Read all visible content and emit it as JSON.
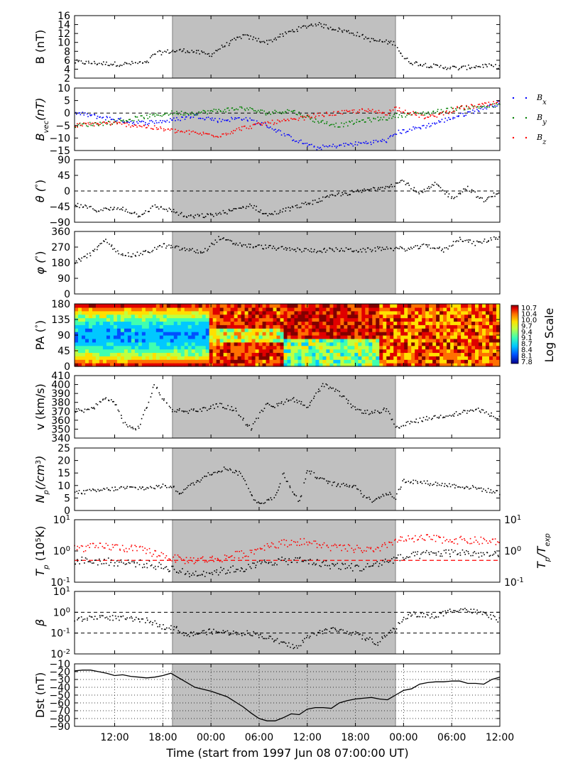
{
  "chart_data": {
    "type": "multi-panel time series",
    "xlabel": "Time (start from 1997 Jun 08 07:00:00 UT)",
    "x_ticks": [
      "12:00",
      "18:00",
      "00:00",
      "06:00",
      "12:00",
      "18:00",
      "00:00",
      "06:00",
      "12:00"
    ],
    "x_range_hours": [
      0,
      53
    ],
    "shaded_interval_hours": [
      12.2,
      40
    ],
    "colors": {
      "shade": "#c0c0c0",
      "bx": "#0000ff",
      "by": "#008000",
      "bz": "#ff0000",
      "data": "#000000",
      "ratio": "#ff0000"
    },
    "panels": [
      {
        "id": "B",
        "ylabel": "B (nT)",
        "yticks": [
          "16",
          "14",
          "12",
          "10",
          "8",
          "6",
          "4",
          "2"
        ],
        "ylim": [
          2,
          16
        ],
        "series": [
          {
            "x": [
              0,
              3,
              6,
              8,
              9,
              10,
              12,
              14,
              17,
              18,
              20,
              21,
              24,
              27,
              30,
              33,
              35,
              37,
              40,
              41,
              42,
              45,
              48,
              51,
              53
            ],
            "values": [
              5.6,
              5.3,
              5.1,
              5.4,
              5.3,
              7.5,
              8.0,
              8.2,
              7.2,
              8.6,
              10.5,
              11.5,
              10.0,
              12.5,
              14.2,
              12.8,
              12.0,
              10.5,
              9.8,
              6.5,
              5.5,
              4.6,
              4.2,
              4.8,
              4.5
            ]
          }
        ]
      },
      {
        "id": "Bvec",
        "ylabel": "Bvec(nT)",
        "yticks": [
          "10",
          "5",
          "0",
          "−5",
          "−10",
          "−15"
        ],
        "ylim": [
          -15,
          10
        ],
        "legend": [
          "Bx",
          "By",
          "Bz"
        ],
        "series": [
          {
            "name": "Bx",
            "x": [
              0,
              4,
              8,
              12,
              15,
              18,
              21,
              24,
              27,
              30,
              33,
              36,
              39,
              40,
              44,
              48,
              53
            ],
            "values": [
              0,
              -2,
              -4,
              -3,
              -1,
              -3,
              -2,
              -5,
              -10,
              -14,
              -13,
              -12,
              -11,
              -8,
              -5,
              -1,
              4
            ]
          },
          {
            "name": "By",
            "x": [
              0,
              4,
              8,
              12,
              15,
              18,
              21,
              24,
              27,
              30,
              33,
              36,
              39,
              40,
              44,
              48,
              53
            ],
            "values": [
              -5,
              -4,
              -2,
              0,
              0,
              1,
              2,
              0,
              1,
              -3,
              -5,
              -3,
              -2,
              -1,
              0,
              2,
              3
            ]
          },
          {
            "name": "Bz",
            "x": [
              0,
              4,
              8,
              12,
              15,
              18,
              21,
              24,
              27,
              30,
              33,
              36,
              39,
              40,
              44,
              48,
              53
            ],
            "values": [
              -5,
              -4,
              -5,
              -7,
              -8,
              -9,
              -6,
              -4,
              -3,
              -1,
              0,
              1,
              0,
              2,
              -2,
              2,
              4
            ]
          }
        ]
      },
      {
        "id": "theta",
        "ylabel": "θ (°)",
        "yticks": [
          "90",
          "45",
          "0",
          "−45",
          "−90"
        ],
        "ylim": [
          -90,
          90
        ],
        "series": [
          {
            "x": [
              0,
              3,
              6,
              8,
              10,
              12,
              14,
              17,
              20,
              22,
              24,
              27,
              30,
              33,
              36,
              38,
              40,
              41,
              43,
              45,
              47,
              49,
              51,
              53
            ],
            "values": [
              -40,
              -55,
              -50,
              -70,
              -45,
              -55,
              -75,
              -70,
              -55,
              -40,
              -70,
              -50,
              -30,
              -10,
              0,
              10,
              20,
              30,
              -10,
              20,
              -20,
              10,
              -30,
              0
            ]
          }
        ]
      },
      {
        "id": "phi",
        "ylabel": "φ (°)",
        "yticks": [
          "360",
          "270",
          "180",
          "90",
          "0"
        ],
        "ylim": [
          0,
          360
        ],
        "series": [
          {
            "x": [
              0,
              2,
              4,
              5,
              7,
              9,
              11,
              12,
              14,
              16,
              18,
              20,
              22,
              24,
              27,
              30,
              33,
              36,
              39,
              40,
              42,
              44,
              46,
              48,
              50,
              53
            ],
            "values": [
              180,
              230,
              310,
              250,
              220,
              240,
              280,
              270,
              255,
              240,
              320,
              290,
              275,
              270,
              255,
              250,
              255,
              250,
              265,
              260,
              260,
              280,
              250,
              320,
              290,
              330
            ]
          }
        ]
      },
      {
        "id": "PA",
        "ylabel": "PA (°)",
        "yticks": [
          "180",
          "135",
          "90",
          "45",
          "0"
        ],
        "ylim": [
          0,
          180
        ],
        "colorbar": {
          "label": "Log Scale",
          "ticks": [
            "10.7",
            "10.4",
            "10.0",
            "9.7",
            "9.4",
            "9.1",
            "8.7",
            "8.4",
            "8.1",
            "7.8"
          ]
        }
      },
      {
        "id": "v",
        "ylabel": "v (km/s)",
        "yticks": [
          "410",
          "400",
          "390",
          "380",
          "370",
          "360",
          "350",
          "340"
        ],
        "ylim": [
          340,
          410
        ],
        "series": [
          {
            "x": [
              0,
              2,
              4,
              5,
              6,
              7,
              8,
              9,
              10,
              11,
              12,
              14,
              16,
              18,
              20,
              22,
              24,
              25,
              27,
              29,
              31,
              33,
              35,
              37,
              39,
              40,
              42,
              44,
              46,
              48,
              50,
              53
            ],
            "values": [
              370,
              372,
              385,
              380,
              360,
              350,
              352,
              375,
              400,
              385,
              372,
              370,
              372,
              377,
              372,
              350,
              380,
              375,
              385,
              375,
              400,
              390,
              372,
              368,
              372,
              350,
              358,
              362,
              365,
              368,
              372,
              363
            ]
          }
        ]
      },
      {
        "id": "Np",
        "ylabel": "Np(/cm3)",
        "yticks": [
          "25",
          "20",
          "15",
          "10",
          "5",
          "0"
        ],
        "ylim": [
          0,
          25
        ],
        "series": [
          {
            "x": [
              0,
              3,
              6,
              9,
              12,
              13,
              15,
              17,
              19,
              21,
              22,
              23,
              25,
              26,
              28,
              29,
              31,
              33,
              35,
              36,
              37,
              39,
              40,
              41,
              44,
              47,
              50,
              53
            ],
            "values": [
              7,
              8,
              9,
              9,
              10,
              7,
              11,
              15,
              17,
              14,
              6,
              3,
              5,
              15,
              3,
              16,
              12,
              10,
              10,
              6,
              4,
              7,
              5,
              12,
              11,
              10,
              9,
              7
            ]
          }
        ]
      },
      {
        "id": "Tp",
        "ylabel": "Tp (10^5 K)",
        "ylabel_right": "Tp/Texp",
        "yticks": [
          "10^1",
          "10^0",
          "10^-1"
        ],
        "yticks_right": [
          "10^1",
          "10^0",
          "10^-1"
        ],
        "yscale": "log",
        "ylim": [
          0.1,
          10
        ],
        "ref_line": 0.5,
        "series": [
          {
            "name": "Tp",
            "x": [
              0,
              4,
              8,
              12,
              14,
              18,
              22,
              24,
              28,
              32,
              36,
              38,
              40,
              44,
              48,
              53
            ],
            "values": [
              0.5,
              0.45,
              0.4,
              0.28,
              0.18,
              0.22,
              0.3,
              0.45,
              0.5,
              0.35,
              0.28,
              0.4,
              0.55,
              0.8,
              0.9,
              0.7
            ]
          },
          {
            "name": "Tp/Texp",
            "x": [
              0,
              4,
              8,
              12,
              14,
              18,
              22,
              24,
              28,
              32,
              36,
              38,
              40,
              44,
              48,
              53
            ],
            "values": [
              1.2,
              1.4,
              1.1,
              0.6,
              0.5,
              0.55,
              0.9,
              1.5,
              2.0,
              1.3,
              1.1,
              1.0,
              2.2,
              2.5,
              2.2,
              2.0
            ]
          }
        ]
      },
      {
        "id": "beta",
        "ylabel": "β",
        "yticks": [
          "10^1",
          "10^0",
          "10^-1",
          "10^-2"
        ],
        "yscale": "log",
        "ylim": [
          0.01,
          10
        ],
        "ref_lines": [
          1,
          0.1
        ],
        "series": [
          {
            "x": [
              0,
              3,
              6,
              9,
              11,
              12,
              14,
              17,
              20,
              22,
              24,
              26,
              28,
              30,
              32,
              34,
              36,
              38,
              40,
              42,
              45,
              48,
              51,
              53
            ],
            "values": [
              0.4,
              0.6,
              0.5,
              0.4,
              0.2,
              0.2,
              0.08,
              0.12,
              0.1,
              0.1,
              0.06,
              0.03,
              0.02,
              0.1,
              0.15,
              0.12,
              0.06,
              0.03,
              0.15,
              0.8,
              0.6,
              1.5,
              0.8,
              0.4
            ]
          }
        ]
      },
      {
        "id": "Dst",
        "ylabel": "Dst (nT)",
        "yticks": [
          "−10",
          "−20",
          "−30",
          "−40",
          "−50",
          "−60",
          "−70",
          "−80",
          "−90"
        ],
        "ylim": [
          -90,
          -10
        ],
        "series": [
          {
            "x": [
              0,
              1,
              2,
              3,
              4,
              5,
              6,
              7,
              8,
              9,
              10,
              11,
              12,
              13,
              15,
              17,
              19,
              21,
              22,
              23,
              24,
              25,
              26,
              27,
              28,
              29,
              30,
              31,
              32,
              33,
              34,
              35,
              36,
              37,
              38,
              39,
              40,
              41,
              42,
              43,
              44,
              45,
              46,
              47,
              48,
              49,
              50,
              51,
              52,
              53
            ],
            "values": [
              -19,
              -18,
              -18,
              -20,
              -22,
              -25,
              -24,
              -26,
              -27,
              -28,
              -27,
              -25,
              -22,
              -28,
              -40,
              -45,
              -52,
              -65,
              -73,
              -80,
              -83,
              -83,
              -79,
              -74,
              -75,
              -68,
              -66,
              -66,
              -67,
              -60,
              -57,
              -55,
              -54,
              -53,
              -55,
              -56,
              -50,
              -44,
              -42,
              -36,
              -34,
              -33,
              -33,
              -32,
              -32,
              -35,
              -35,
              -36,
              -30,
              -27
            ]
          }
        ]
      }
    ]
  }
}
